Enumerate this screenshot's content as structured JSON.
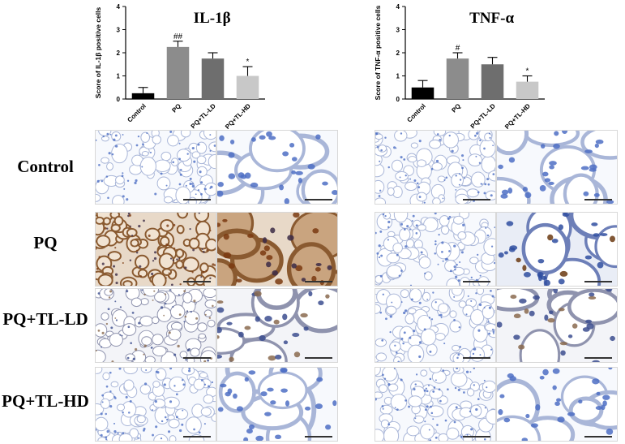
{
  "colors": {
    "Control": "#000000",
    "PQ": "#8c8c8c",
    "PQ+TL-LD": "#6e6e6e",
    "PQ+TL-HD": "#c8c8c8"
  },
  "chart_data": [
    {
      "type": "bar",
      "title": "IL-1β",
      "ylabel": "Score of IL-1β positive cells",
      "categories": [
        "Control",
        "PQ",
        "PQ+TL-LD",
        "PQ+TL-HD"
      ],
      "values": [
        0.25,
        2.25,
        1.75,
        1.0
      ],
      "errors": [
        0.25,
        0.25,
        0.25,
        0.4
      ],
      "annotations": [
        "",
        "##",
        "",
        "*"
      ],
      "ylim": [
        0,
        4
      ],
      "yticks": [
        "0",
        "1",
        "2",
        "3",
        "4"
      ]
    },
    {
      "type": "bar",
      "title": "TNF-α",
      "ylabel": "Score of TNF-α positive cells",
      "categories": [
        "Control",
        "PQ",
        "PQ+TL-LD",
        "PQ+TL-HD"
      ],
      "values": [
        0.5,
        1.75,
        1.5,
        0.75
      ],
      "errors": [
        0.3,
        0.25,
        0.3,
        0.25
      ],
      "annotations": [
        "",
        "#",
        "",
        "*"
      ],
      "ylim": [
        0,
        4
      ],
      "yticks": [
        "0",
        "1",
        "2",
        "3",
        "4"
      ]
    }
  ],
  "row_labels": [
    "Control",
    "PQ",
    "PQ+TL-LD",
    "PQ+TL-HD"
  ],
  "panels": {
    "rows": [
      {
        "group": "Control",
        "stain": [
          "light",
          "light",
          "light",
          "light"
        ]
      },
      {
        "group": "PQ",
        "stain": [
          "heavy",
          "heavy",
          "light",
          "moderate"
        ]
      },
      {
        "group": "PQ+TL-LD",
        "stain": [
          "medium",
          "medium",
          "light",
          "medium"
        ]
      },
      {
        "group": "PQ+TL-HD",
        "stain": [
          "light",
          "light",
          "light",
          "light"
        ]
      }
    ]
  }
}
